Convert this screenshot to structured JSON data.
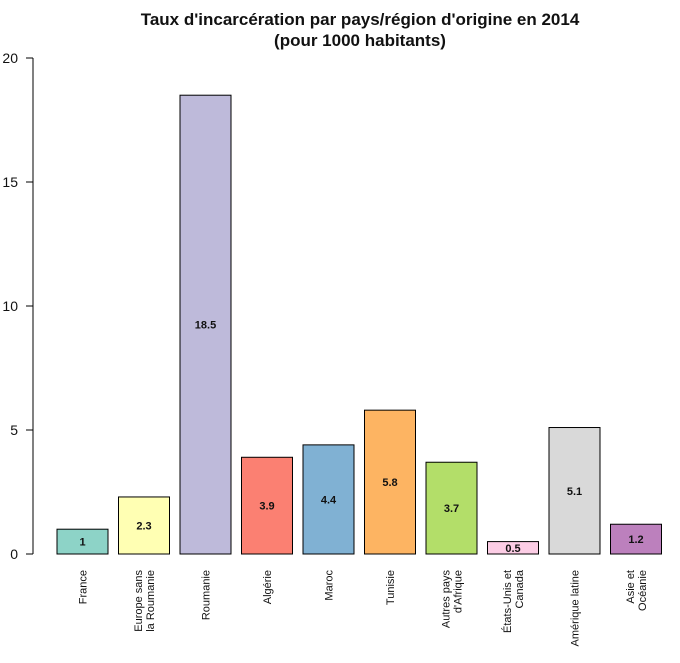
{
  "chart_data": {
    "type": "bar",
    "title_lines": [
      "Taux d'incarcération par pays/région d'origine en 2014",
      "(pour 1000 habitants)"
    ],
    "xlabel": "",
    "ylabel": "",
    "ylim": [
      0,
      20
    ],
    "yticks": [
      "0",
      "5",
      "10",
      "15",
      "20"
    ],
    "grid": false,
    "categories": [
      [
        "France"
      ],
      [
        "Europe sans",
        "la Roumanie"
      ],
      [
        "Roumanie"
      ],
      [
        "Algérie"
      ],
      [
        "Maroc"
      ],
      [
        "Tunisie"
      ],
      [
        "Autres pays",
        "d'Afrique"
      ],
      [
        "États-Unis et",
        "Canada"
      ],
      [
        "Amérique latine"
      ],
      [
        "Asie et",
        "Océanie"
      ]
    ],
    "values": [
      1.0,
      2.3,
      18.5,
      3.9,
      4.4,
      5.8,
      3.7,
      0.5,
      5.1,
      1.2
    ],
    "value_labels": [
      "1",
      "2.3",
      "18.5",
      "3.9",
      "4.4",
      "5.8",
      "3.7",
      "0.5",
      "5.1",
      "1.2"
    ],
    "colors": [
      "#8dd3c7",
      "#ffffb3",
      "#bebada",
      "#fb8072",
      "#80b1d3",
      "#fdb462",
      "#b3de69",
      "#fccde5",
      "#d9d9d9",
      "#bc80bd"
    ]
  }
}
